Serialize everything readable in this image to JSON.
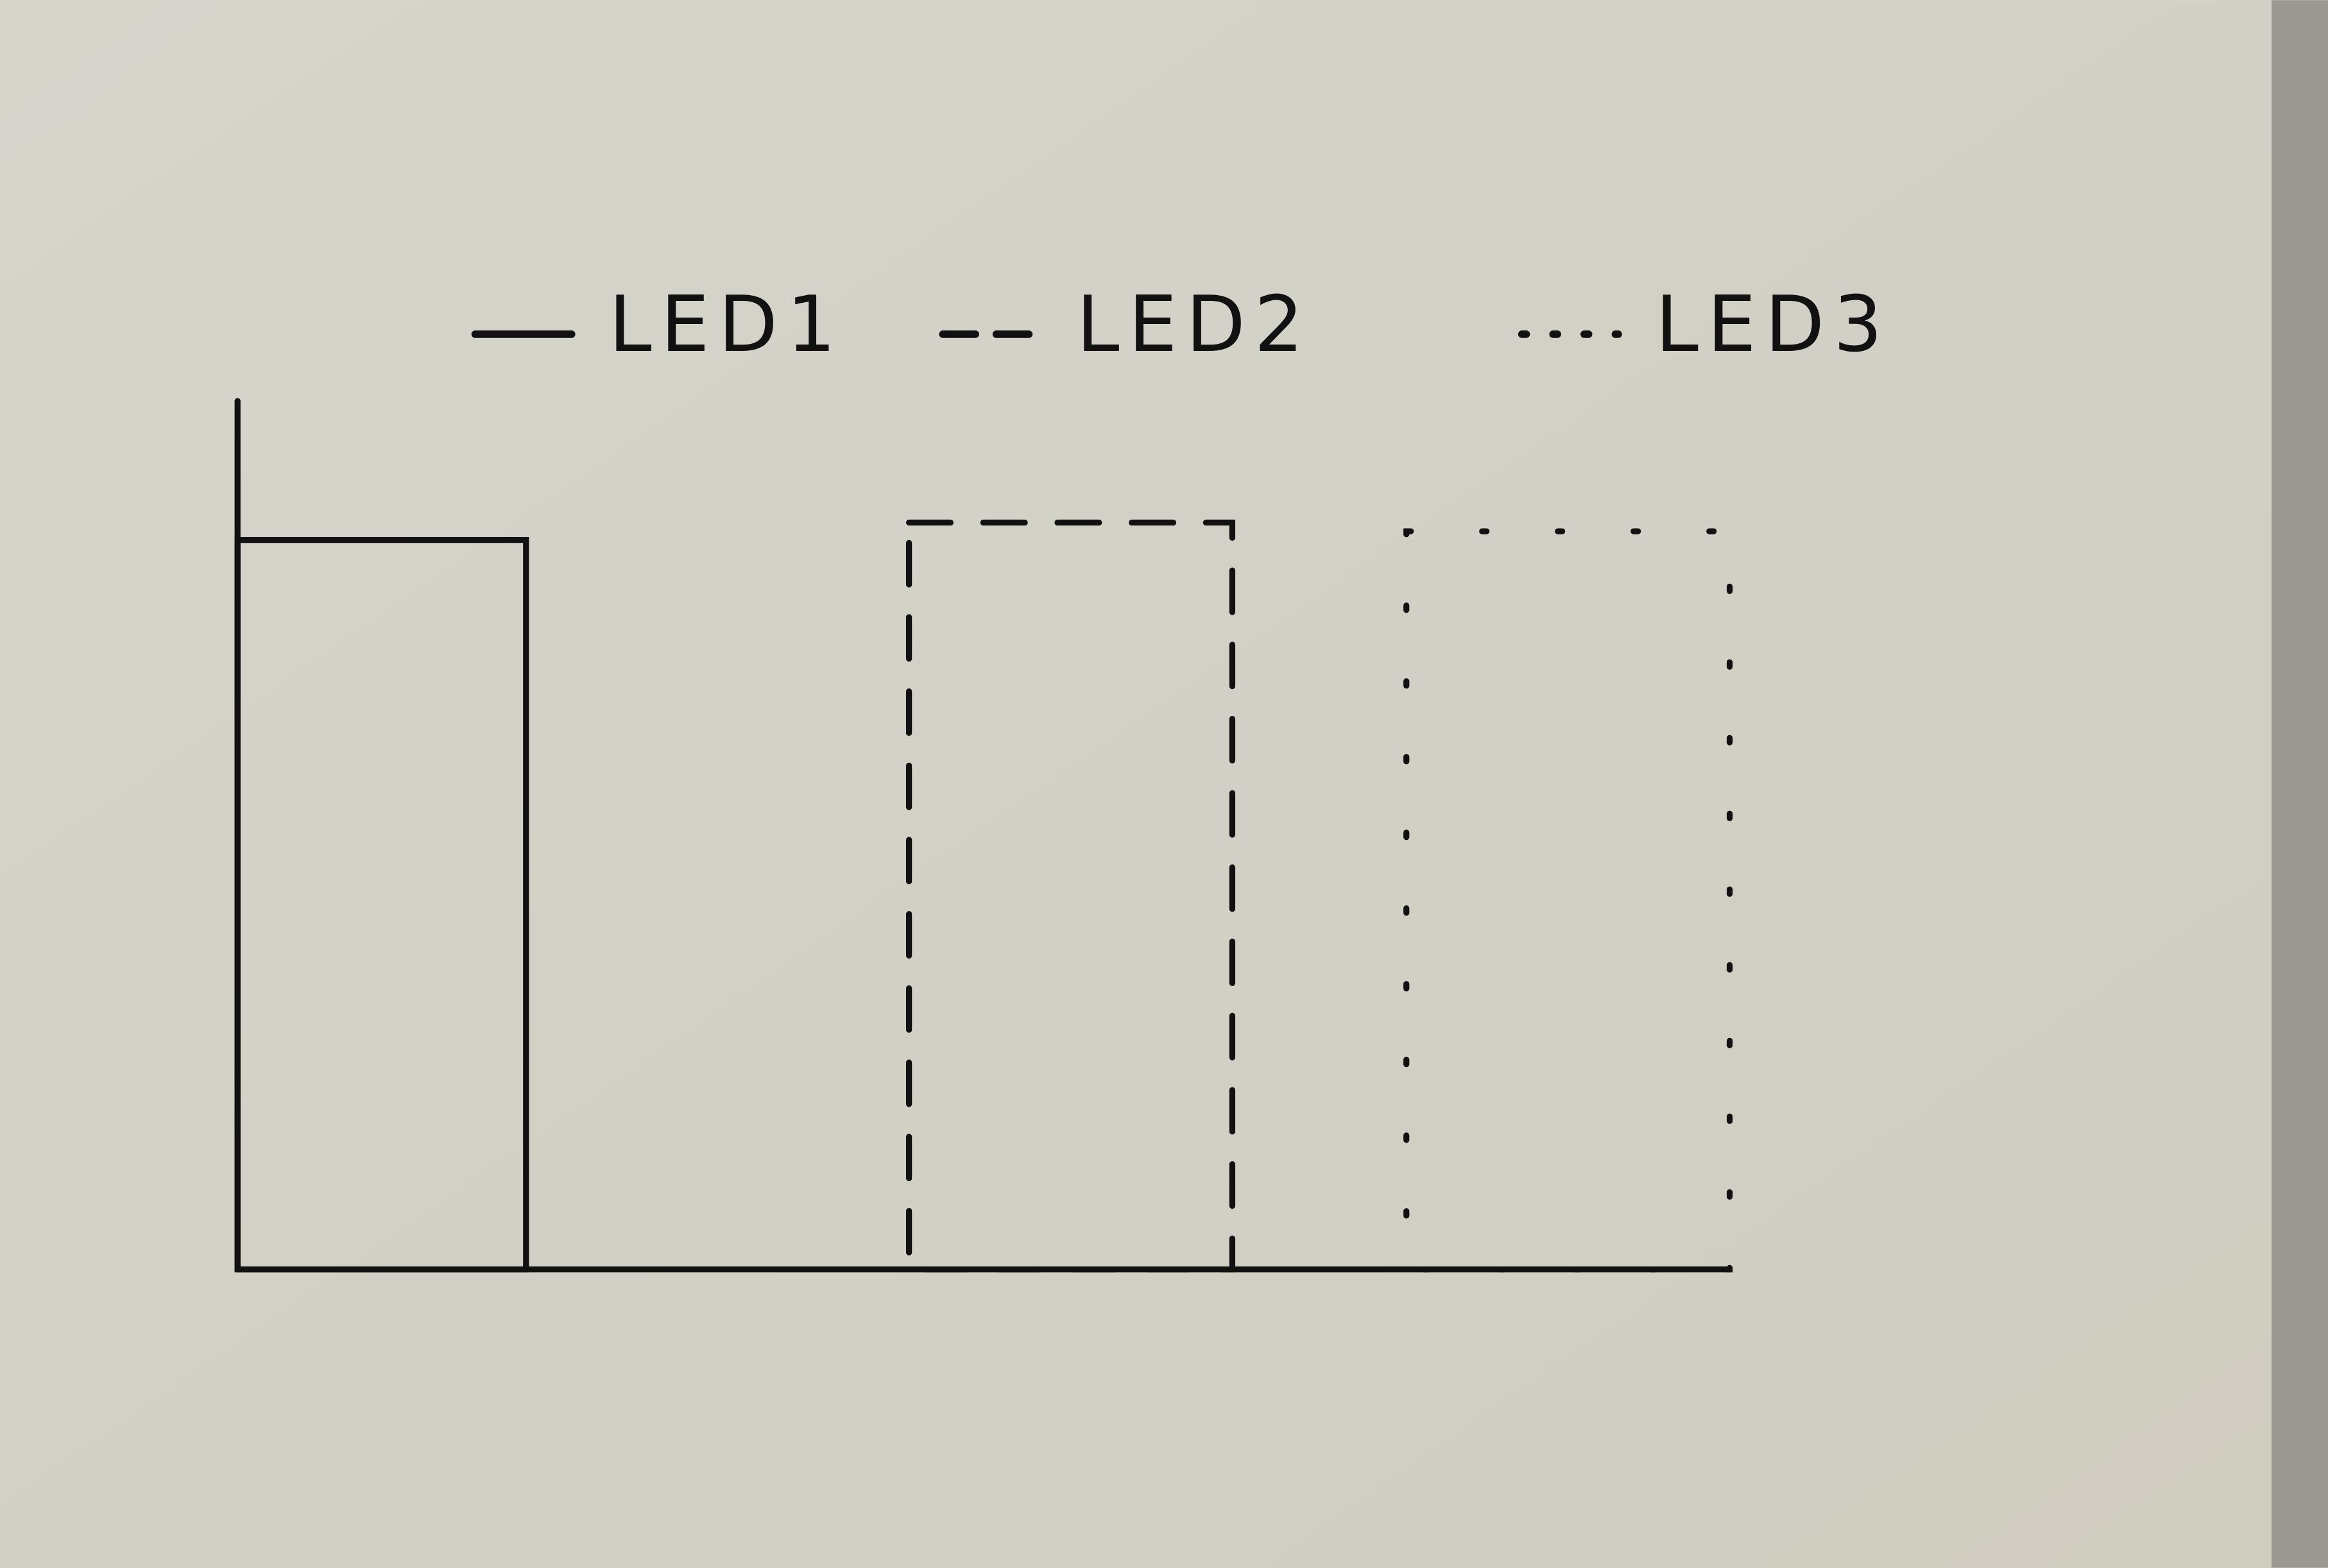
{
  "chart_data": {
    "type": "bar",
    "series": [
      {
        "name": "LED1",
        "color": "#111111",
        "style": "solid",
        "values": [
          84
        ]
      },
      {
        "name": "LED2",
        "color": "#111111",
        "style": "dashed",
        "values": [
          86
        ]
      },
      {
        "name": "LED3",
        "color": "#111111",
        "style": "dotted",
        "values": [
          85
        ]
      }
    ],
    "ylim": [
      0,
      100
    ],
    "legend": "top"
  }
}
